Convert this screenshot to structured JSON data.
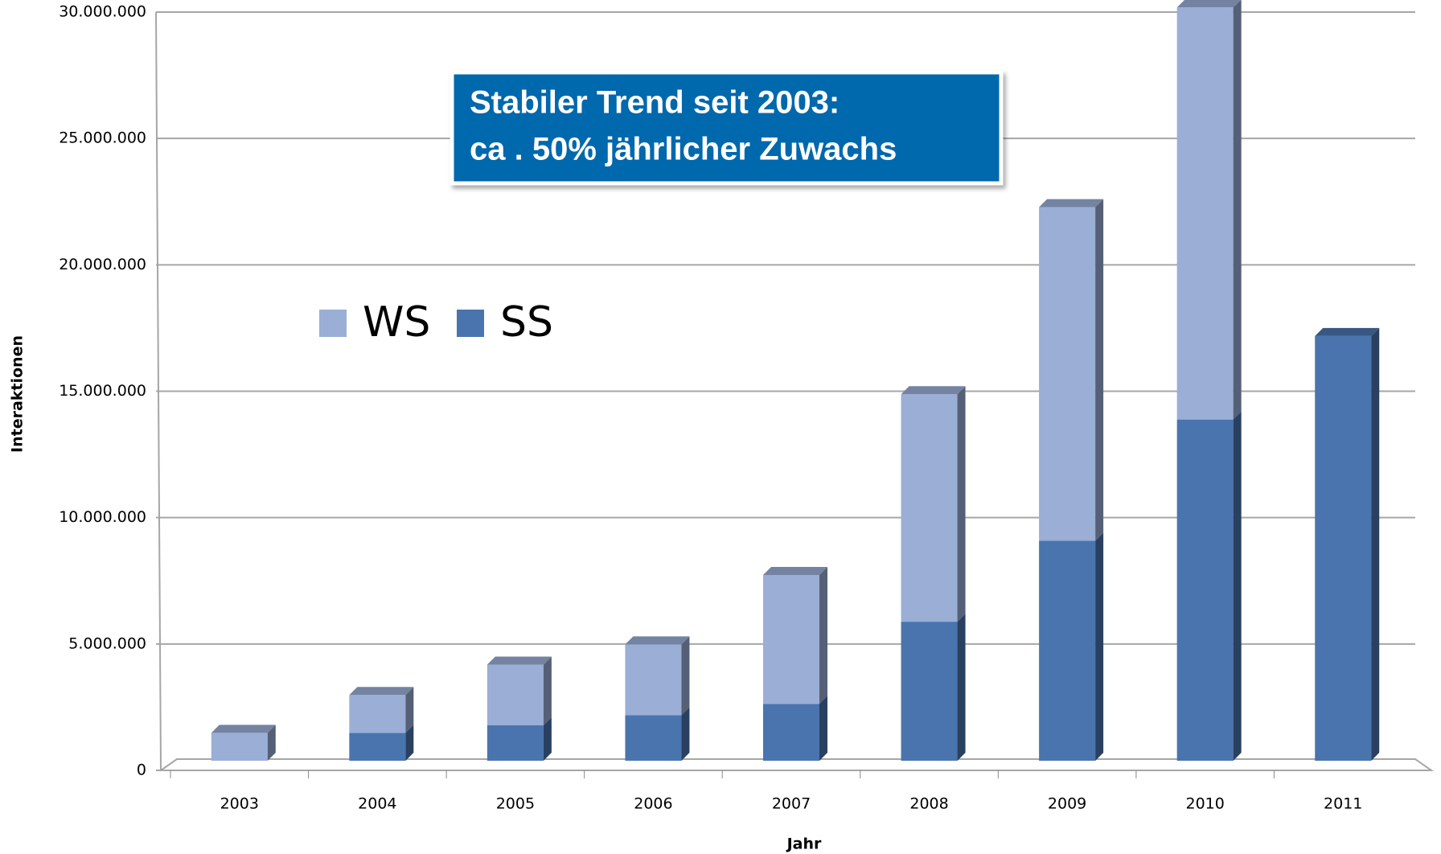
{
  "chart_data": {
    "type": "bar",
    "stacked": true,
    "categories": [
      "2003",
      "2004",
      "2005",
      "2006",
      "2007",
      "2008",
      "2009",
      "2010",
      "2011"
    ],
    "series": [
      {
        "name": "SS",
        "color": "#4a74ae",
        "values": [
          0,
          1100000,
          1400000,
          1800000,
          2250000,
          5500000,
          8700000,
          13500000,
          16800000
        ]
      },
      {
        "name": "WS",
        "color": "#9aaed6",
        "values": [
          1100000,
          1500000,
          2400000,
          2800000,
          5100000,
          9000000,
          13200000,
          16300000,
          null
        ]
      }
    ],
    "ylim": [
      0,
      30000000
    ],
    "yticks": [
      0,
      {
        "value": 5000000,
        "label": "5.000.000"
      },
      {
        "value": 10000000,
        "label": "10.000.000"
      },
      {
        "value": 15000000,
        "label": "15.000.000"
      },
      {
        "value": 20000000,
        "label": "20.000.000"
      },
      {
        "value": 25000000,
        "label": "25.000.000"
      },
      {
        "value": 30000000,
        "label": "30.000.000"
      }
    ],
    "xlabel": "Jahr",
    "ylabel": "Interaktionen",
    "annotation": [
      "Stabiler Trend seit 2003:",
      "ca . 50% jährlicher Zuwachs"
    ],
    "grid": true
  }
}
